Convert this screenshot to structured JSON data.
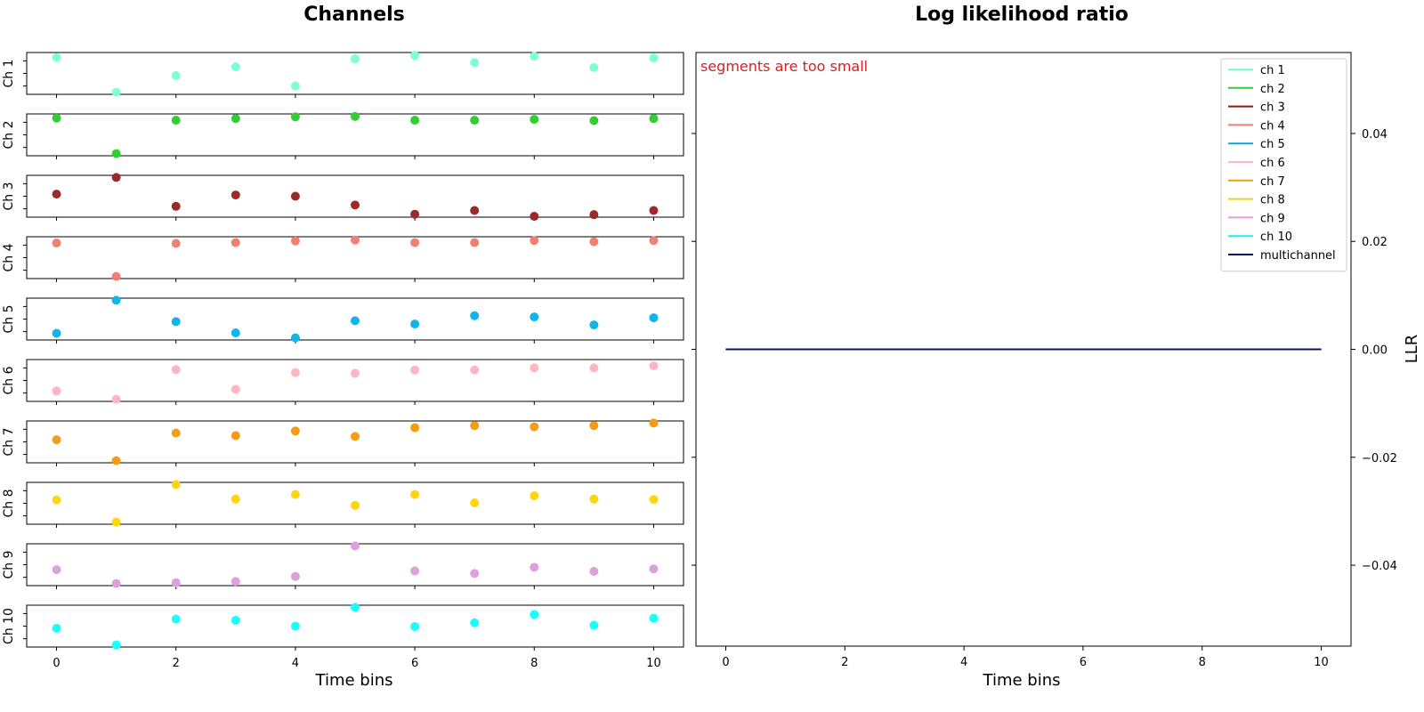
{
  "chart_data": [
    {
      "type": "scatter",
      "title": "Channels",
      "xlabel": "Time bins",
      "x_ticks": [
        0,
        2,
        4,
        6,
        8,
        10
      ],
      "x": [
        0,
        1,
        2,
        3,
        4,
        5,
        6,
        7,
        8,
        9,
        10
      ],
      "series": [
        {
          "name": "Ch 1",
          "color": "#7fffd4",
          "values": [
            0.88,
            0.05,
            0.45,
            0.66,
            0.2,
            0.85,
            0.93,
            0.76,
            0.91,
            0.64,
            0.87
          ]
        },
        {
          "name": "Ch 2",
          "color": "#32cd32",
          "values": [
            0.9,
            0.05,
            0.85,
            0.89,
            0.93,
            0.94,
            0.85,
            0.85,
            0.87,
            0.84,
            0.89
          ]
        },
        {
          "name": "Ch 3",
          "color": "#9b2a2a",
          "values": [
            0.55,
            0.95,
            0.26,
            0.53,
            0.5,
            0.29,
            0.07,
            0.16,
            0.02,
            0.06,
            0.16
          ]
        },
        {
          "name": "Ch 4",
          "color": "#f08072",
          "values": [
            0.85,
            0.05,
            0.84,
            0.86,
            0.9,
            0.92,
            0.86,
            0.86,
            0.91,
            0.88,
            0.91
          ]
        },
        {
          "name": "Ch 5",
          "color": "#12b4ec",
          "values": [
            0.16,
            0.95,
            0.44,
            0.17,
            0.05,
            0.46,
            0.38,
            0.58,
            0.55,
            0.36,
            0.53
          ]
        },
        {
          "name": "Ch 6",
          "color": "#ffb6c1",
          "values": [
            0.25,
            0.05,
            0.76,
            0.29,
            0.69,
            0.67,
            0.75,
            0.75,
            0.8,
            0.8,
            0.85
          ]
        },
        {
          "name": "Ch 7",
          "color": "#f49c12",
          "values": [
            0.55,
            0.05,
            0.71,
            0.65,
            0.76,
            0.63,
            0.84,
            0.89,
            0.86,
            0.89,
            0.95
          ]
        },
        {
          "name": "Ch 8",
          "color": "#ffd50e",
          "values": [
            0.58,
            0.05,
            0.95,
            0.6,
            0.71,
            0.45,
            0.71,
            0.51,
            0.68,
            0.6,
            0.59
          ]
        },
        {
          "name": "Ch 9",
          "color": "#dda0dd",
          "values": [
            0.38,
            0.05,
            0.07,
            0.1,
            0.22,
            0.95,
            0.35,
            0.29,
            0.44,
            0.34,
            0.4
          ]
        },
        {
          "name": "Ch 10",
          "color": "#1dfdfd",
          "values": [
            0.45,
            0.05,
            0.67,
            0.64,
            0.5,
            0.95,
            0.49,
            0.58,
            0.78,
            0.52,
            0.69
          ]
        }
      ],
      "ylabels": [
        "Ch 1",
        "Ch 2",
        "Ch 3",
        "Ch 4",
        "Ch 5",
        "Ch 6",
        "Ch 7",
        "Ch 8",
        "Ch 9",
        "Ch 10"
      ],
      "xlim": [
        -0.5,
        10.5
      ],
      "ylim": [
        0,
        1
      ]
    },
    {
      "type": "line",
      "title": "Log likelihood ratio",
      "xlabel": "Time bins",
      "ylabel": "LLR",
      "annotation": "segments are too small",
      "annotation_color": "#d62020",
      "x_ticks": [
        0,
        2,
        4,
        6,
        8,
        10
      ],
      "y_ticks": [
        0.04,
        0.02,
        0.0,
        -0.02,
        -0.04
      ],
      "y_tick_labels": [
        "0.04",
        "0.02",
        "0.00",
        "−0.02",
        "−0.04"
      ],
      "xlim": [
        -0.5,
        10.5
      ],
      "ylim": [
        -0.055,
        0.055
      ],
      "y_axis_side": "right",
      "legend_position": "top-right",
      "x": [
        0,
        1,
        2,
        3,
        4,
        5,
        6,
        7,
        8,
        9,
        10
      ],
      "series": [
        {
          "name": "ch 1",
          "color": "#7fffd4",
          "values": [
            0,
            0,
            0,
            0,
            0,
            0,
            0,
            0,
            0,
            0,
            0
          ]
        },
        {
          "name": "ch 2",
          "color": "#32cd32",
          "values": [
            0,
            0,
            0,
            0,
            0,
            0,
            0,
            0,
            0,
            0,
            0
          ]
        },
        {
          "name": "ch 3",
          "color": "#8b1a1a",
          "values": [
            0,
            0,
            0,
            0,
            0,
            0,
            0,
            0,
            0,
            0,
            0
          ]
        },
        {
          "name": "ch 4",
          "color": "#f08072",
          "values": [
            0,
            0,
            0,
            0,
            0,
            0,
            0,
            0,
            0,
            0,
            0
          ]
        },
        {
          "name": "ch 5",
          "color": "#0fa4dd",
          "values": [
            0,
            0,
            0,
            0,
            0,
            0,
            0,
            0,
            0,
            0,
            0
          ]
        },
        {
          "name": "ch 6",
          "color": "#ffb6c1",
          "values": [
            0,
            0,
            0,
            0,
            0,
            0,
            0,
            0,
            0,
            0,
            0
          ]
        },
        {
          "name": "ch 7",
          "color": "#e8a20b",
          "values": [
            0,
            0,
            0,
            0,
            0,
            0,
            0,
            0,
            0,
            0,
            0
          ]
        },
        {
          "name": "ch 8",
          "color": "#f2d20c",
          "values": [
            0,
            0,
            0,
            0,
            0,
            0,
            0,
            0,
            0,
            0,
            0
          ]
        },
        {
          "name": "ch 9",
          "color": "#dda0dd",
          "values": [
            0,
            0,
            0,
            0,
            0,
            0,
            0,
            0,
            0,
            0,
            0
          ]
        },
        {
          "name": "ch 10",
          "color": "#1aeef0",
          "values": [
            0,
            0,
            0,
            0,
            0,
            0,
            0,
            0,
            0,
            0,
            0
          ]
        },
        {
          "name": "multichannel",
          "color": "#0a1464",
          "values": [
            0,
            0,
            0,
            0,
            0,
            0,
            0,
            0,
            0,
            0,
            0
          ]
        }
      ]
    }
  ]
}
